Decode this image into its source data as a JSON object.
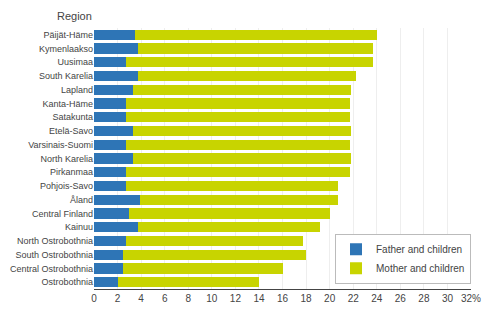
{
  "chart_data": {
    "type": "bar",
    "orientation": "horizontal",
    "stacked": true,
    "ylabel": "Region",
    "categories": [
      "Päijät-Häme",
      "Kymenlaakso",
      "Uusimaa",
      "South Karelia",
      "Lapland",
      "Kanta-Häme",
      "Satakunta",
      "Etelä-Savo",
      "Varsinais-Suomi",
      "North Karelia",
      "Pirkanmaa",
      "Pohjois-Savo",
      "Åland",
      "Central Finland",
      "Kainuu",
      "North Ostrobothnia",
      "South Ostrobothnia",
      "Central Ostrobothnia",
      "Ostrobothnia"
    ],
    "series": [
      {
        "name": "Father and children",
        "color": "#2e75b6",
        "values": [
          3.5,
          3.7,
          2.7,
          3.7,
          3.3,
          2.7,
          2.7,
          3.3,
          2.7,
          3.3,
          2.7,
          2.7,
          3.9,
          3.0,
          3.7,
          2.7,
          2.5,
          2.5,
          2.0
        ]
      },
      {
        "name": "Mother and children",
        "color": "#c8d400",
        "values": [
          20.5,
          20.0,
          21.0,
          18.5,
          18.5,
          19.0,
          19.0,
          18.5,
          19.0,
          18.5,
          19.0,
          18.0,
          16.8,
          17.0,
          15.5,
          15.0,
          15.5,
          13.5,
          12.0
        ]
      }
    ],
    "xlim": [
      0,
      32
    ],
    "xticks": [
      0,
      2,
      4,
      6,
      8,
      10,
      12,
      14,
      16,
      18,
      20,
      22,
      24,
      26,
      28,
      30,
      {
        "value": 32,
        "label": "32%"
      }
    ],
    "grid": true,
    "legend": "lower right"
  }
}
